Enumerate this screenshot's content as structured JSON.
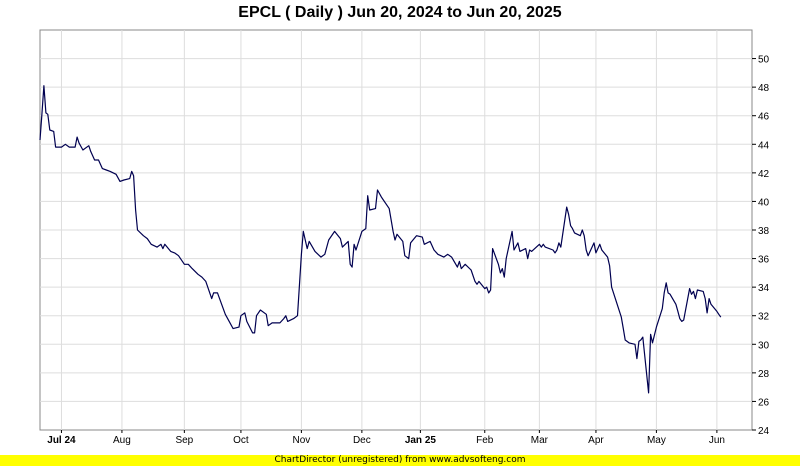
{
  "chart_data": {
    "type": "line",
    "title": "EPCL ( Daily ) Jun 20, 2024 to Jun 20, 2025",
    "xlabel": "",
    "ylabel": "",
    "ylim": [
      24,
      52
    ],
    "y_ticks": [
      24,
      26,
      28,
      30,
      32,
      34,
      36,
      38,
      40,
      42,
      44,
      46,
      48,
      50
    ],
    "x_tick_labels": [
      {
        "label": "Jul 24",
        "date": "2024-07-01",
        "bold": true
      },
      {
        "label": "Aug",
        "date": "2024-08-01",
        "bold": false
      },
      {
        "label": "Sep",
        "date": "2024-09-02",
        "bold": false
      },
      {
        "label": "Oct",
        "date": "2024-10-01",
        "bold": false
      },
      {
        "label": "Nov",
        "date": "2024-11-01",
        "bold": false
      },
      {
        "label": "Dec",
        "date": "2024-12-02",
        "bold": false
      },
      {
        "label": "Jan 25",
        "date": "2025-01-01",
        "bold": true
      },
      {
        "label": "Feb",
        "date": "2025-02-03",
        "bold": false
      },
      {
        "label": "Mar",
        "date": "2025-03-03",
        "bold": false
      },
      {
        "label": "Apr",
        "date": "2025-04-01",
        "bold": false
      },
      {
        "label": "May",
        "date": "2025-05-02",
        "bold": false
      },
      {
        "label": "Jun",
        "date": "2025-06-02",
        "bold": false
      }
    ],
    "x_range": [
      "2024-06-20",
      "2025-06-20"
    ],
    "grid": true,
    "line_color": "#000050",
    "series": [
      {
        "points": [
          [
            "2024-06-20",
            44.3
          ],
          [
            "2024-06-21",
            46.2
          ],
          [
            "2024-06-22",
            48.1
          ],
          [
            "2024-06-23",
            46.2
          ],
          [
            "2024-06-24",
            46.1
          ],
          [
            "2024-06-25",
            45.0
          ],
          [
            "2024-06-27",
            44.9
          ],
          [
            "2024-06-28",
            43.8
          ],
          [
            "2024-07-01",
            43.8
          ],
          [
            "2024-07-03",
            44.0
          ],
          [
            "2024-07-05",
            43.8
          ],
          [
            "2024-07-08",
            43.8
          ],
          [
            "2024-07-09",
            44.5
          ],
          [
            "2024-07-10",
            44.1
          ],
          [
            "2024-07-12",
            43.6
          ],
          [
            "2024-07-15",
            43.9
          ],
          [
            "2024-07-16",
            43.5
          ],
          [
            "2024-07-18",
            42.9
          ],
          [
            "2024-07-20",
            42.9
          ],
          [
            "2024-07-22",
            42.3
          ],
          [
            "2024-07-24",
            42.2
          ],
          [
            "2024-07-26",
            42.1
          ],
          [
            "2024-07-29",
            41.9
          ],
          [
            "2024-07-31",
            41.4
          ],
          [
            "2024-08-02",
            41.5
          ],
          [
            "2024-08-05",
            41.6
          ],
          [
            "2024-08-06",
            42.1
          ],
          [
            "2024-08-07",
            41.8
          ],
          [
            "2024-08-08",
            39.4
          ],
          [
            "2024-08-09",
            38.0
          ],
          [
            "2024-08-12",
            37.6
          ],
          [
            "2024-08-14",
            37.4
          ],
          [
            "2024-08-16",
            37.0
          ],
          [
            "2024-08-19",
            36.8
          ],
          [
            "2024-08-21",
            37.0
          ],
          [
            "2024-08-22",
            36.7
          ],
          [
            "2024-08-23",
            37.0
          ],
          [
            "2024-08-26",
            36.5
          ],
          [
            "2024-08-28",
            36.4
          ],
          [
            "2024-08-30",
            36.2
          ],
          [
            "2024-09-02",
            35.6
          ],
          [
            "2024-09-04",
            35.6
          ],
          [
            "2024-09-06",
            35.3
          ],
          [
            "2024-09-09",
            34.9
          ],
          [
            "2024-09-11",
            34.7
          ],
          [
            "2024-09-13",
            34.4
          ],
          [
            "2024-09-16",
            33.2
          ],
          [
            "2024-09-17",
            33.6
          ],
          [
            "2024-09-19",
            33.6
          ],
          [
            "2024-09-23",
            32.1
          ],
          [
            "2024-09-25",
            31.6
          ],
          [
            "2024-09-27",
            31.1
          ],
          [
            "2024-09-30",
            31.2
          ],
          [
            "2024-10-01",
            32.0
          ],
          [
            "2024-10-03",
            32.2
          ],
          [
            "2024-10-04",
            31.6
          ],
          [
            "2024-10-07",
            30.8
          ],
          [
            "2024-10-08",
            30.8
          ],
          [
            "2024-10-09",
            32.0
          ],
          [
            "2024-10-11",
            32.4
          ],
          [
            "2024-10-14",
            32.1
          ],
          [
            "2024-10-15",
            31.3
          ],
          [
            "2024-10-17",
            31.5
          ],
          [
            "2024-10-21",
            31.5
          ],
          [
            "2024-10-23",
            31.8
          ],
          [
            "2024-10-24",
            32.0
          ],
          [
            "2024-10-25",
            31.6
          ],
          [
            "2024-10-28",
            31.8
          ],
          [
            "2024-10-30",
            32.0
          ],
          [
            "2024-11-01",
            36.3
          ],
          [
            "2024-11-02",
            37.9
          ],
          [
            "2024-11-04",
            36.7
          ],
          [
            "2024-11-05",
            37.2
          ],
          [
            "2024-11-08",
            36.5
          ],
          [
            "2024-11-11",
            36.1
          ],
          [
            "2024-11-13",
            36.3
          ],
          [
            "2024-11-15",
            37.3
          ],
          [
            "2024-11-18",
            37.9
          ],
          [
            "2024-11-21",
            37.4
          ],
          [
            "2024-11-22",
            36.8
          ],
          [
            "2024-11-25",
            37.2
          ],
          [
            "2024-11-26",
            35.6
          ],
          [
            "2024-11-27",
            35.4
          ],
          [
            "2024-11-28",
            37.0
          ],
          [
            "2024-11-29",
            36.6
          ],
          [
            "2024-12-02",
            37.9
          ],
          [
            "2024-12-04",
            38.1
          ],
          [
            "2024-12-05",
            40.4
          ],
          [
            "2024-12-06",
            39.4
          ],
          [
            "2024-12-09",
            39.5
          ],
          [
            "2024-12-10",
            40.8
          ],
          [
            "2024-12-12",
            40.3
          ],
          [
            "2024-12-16",
            39.5
          ],
          [
            "2024-12-18",
            37.9
          ],
          [
            "2024-12-19",
            37.3
          ],
          [
            "2024-12-20",
            37.7
          ],
          [
            "2024-12-23",
            37.2
          ],
          [
            "2024-12-24",
            36.2
          ],
          [
            "2024-12-26",
            36.0
          ],
          [
            "2024-12-27",
            37.1
          ],
          [
            "2024-12-30",
            37.6
          ],
          [
            "2025-01-02",
            37.5
          ],
          [
            "2025-01-03",
            37.0
          ],
          [
            "2025-01-06",
            37.2
          ],
          [
            "2025-01-08",
            36.6
          ],
          [
            "2025-01-10",
            36.3
          ],
          [
            "2025-01-13",
            36.1
          ],
          [
            "2025-01-15",
            36.3
          ],
          [
            "2025-01-17",
            36.1
          ],
          [
            "2025-01-20",
            35.4
          ],
          [
            "2025-01-21",
            35.8
          ],
          [
            "2025-01-22",
            35.3
          ],
          [
            "2025-01-24",
            35.6
          ],
          [
            "2025-01-27",
            35.2
          ],
          [
            "2025-01-29",
            34.4
          ],
          [
            "2025-01-30",
            34.2
          ],
          [
            "2025-01-31",
            34.4
          ],
          [
            "2025-02-03",
            33.9
          ],
          [
            "2025-02-04",
            34.0
          ],
          [
            "2025-02-05",
            33.6
          ],
          [
            "2025-02-06",
            33.8
          ],
          [
            "2025-02-07",
            36.7
          ],
          [
            "2025-02-10",
            35.6
          ],
          [
            "2025-02-11",
            35.0
          ],
          [
            "2025-02-12",
            35.3
          ],
          [
            "2025-02-13",
            34.7
          ],
          [
            "2025-02-14",
            36.0
          ],
          [
            "2025-02-17",
            37.9
          ],
          [
            "2025-02-18",
            36.6
          ],
          [
            "2025-02-20",
            37.1
          ],
          [
            "2025-02-21",
            36.5
          ],
          [
            "2025-02-24",
            36.7
          ],
          [
            "2025-02-25",
            36.0
          ],
          [
            "2025-02-26",
            36.6
          ],
          [
            "2025-02-27",
            36.5
          ],
          [
            "2025-03-03",
            37.0
          ],
          [
            "2025-03-04",
            36.8
          ],
          [
            "2025-03-05",
            37.0
          ],
          [
            "2025-03-06",
            36.8
          ],
          [
            "2025-03-10",
            36.6
          ],
          [
            "2025-03-11",
            36.4
          ],
          [
            "2025-03-12",
            36.6
          ],
          [
            "2025-03-13",
            37.1
          ],
          [
            "2025-03-14",
            36.8
          ],
          [
            "2025-03-17",
            39.6
          ],
          [
            "2025-03-18",
            39.1
          ],
          [
            "2025-03-19",
            38.3
          ],
          [
            "2025-03-20",
            38.1
          ],
          [
            "2025-03-21",
            37.8
          ],
          [
            "2025-03-24",
            37.6
          ],
          [
            "2025-03-25",
            38.0
          ],
          [
            "2025-03-26",
            37.6
          ],
          [
            "2025-03-27",
            36.6
          ],
          [
            "2025-03-28",
            36.2
          ],
          [
            "2025-03-31",
            37.1
          ],
          [
            "2025-04-01",
            36.4
          ],
          [
            "2025-04-03",
            37.0
          ],
          [
            "2025-04-04",
            36.6
          ],
          [
            "2025-04-07",
            36.1
          ],
          [
            "2025-04-08",
            35.5
          ],
          [
            "2025-04-09",
            34.0
          ],
          [
            "2025-04-10",
            33.6
          ],
          [
            "2025-04-14",
            31.9
          ],
          [
            "2025-04-15",
            31.1
          ],
          [
            "2025-04-16",
            30.3
          ],
          [
            "2025-04-18",
            30.1
          ],
          [
            "2025-04-21",
            30.0
          ],
          [
            "2025-04-22",
            29.0
          ],
          [
            "2025-04-23",
            30.2
          ],
          [
            "2025-04-24",
            30.3
          ],
          [
            "2025-04-25",
            30.5
          ],
          [
            "2025-04-28",
            26.6
          ],
          [
            "2025-04-29",
            30.7
          ],
          [
            "2025-04-30",
            30.1
          ],
          [
            "2025-05-02",
            31.2
          ],
          [
            "2025-05-05",
            32.5
          ],
          [
            "2025-05-06",
            33.6
          ],
          [
            "2025-05-07",
            34.3
          ],
          [
            "2025-05-08",
            33.6
          ],
          [
            "2025-05-09",
            33.5
          ],
          [
            "2025-05-12",
            32.8
          ],
          [
            "2025-05-13",
            32.3
          ],
          [
            "2025-05-14",
            31.8
          ],
          [
            "2025-05-15",
            31.6
          ],
          [
            "2025-05-16",
            31.7
          ],
          [
            "2025-05-19",
            33.9
          ],
          [
            "2025-05-20",
            33.5
          ],
          [
            "2025-05-21",
            33.7
          ],
          [
            "2025-05-22",
            33.2
          ],
          [
            "2025-05-23",
            33.8
          ],
          [
            "2025-05-26",
            33.7
          ],
          [
            "2025-05-27",
            33.2
          ],
          [
            "2025-05-28",
            32.2
          ],
          [
            "2025-05-29",
            33.2
          ],
          [
            "2025-05-30",
            32.8
          ],
          [
            "2025-06-02",
            32.3
          ],
          [
            "2025-06-03",
            32.1
          ],
          [
            "2025-06-04",
            31.9
          ]
        ]
      }
    ]
  },
  "footer": {
    "text": "ChartDirector (unregistered) from www.advsofteng.com"
  }
}
